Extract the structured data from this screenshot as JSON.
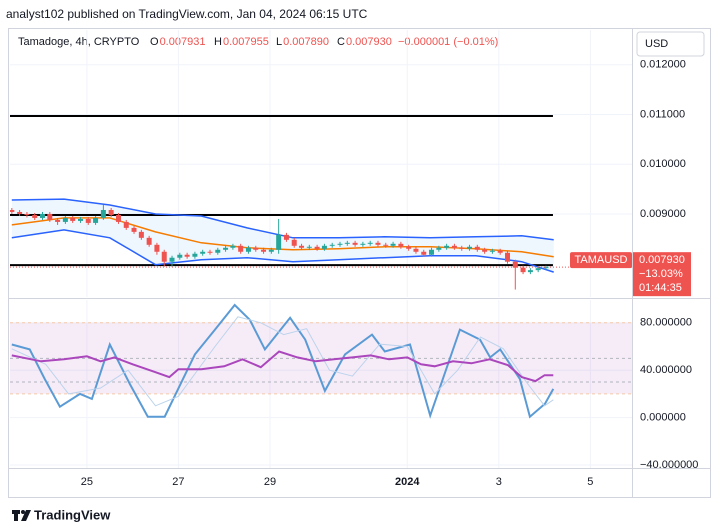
{
  "header": {
    "attribution": "analyst102 published on TradingView.com, Jan 04, 2024 06:15 UTC",
    "symbol": "Tamadoge, 4h, CRYPTO",
    "ohlc": [
      {
        "label": "O",
        "value": "0.007931"
      },
      {
        "label": "H",
        "value": "0.007955"
      },
      {
        "label": "L",
        "value": "0.007890"
      },
      {
        "label": "C",
        "value": "0.007930"
      }
    ],
    "change": "−0.000001 (−0.01%)",
    "currency": "USD",
    "footer": "TradingView"
  },
  "chart_data": [
    {
      "type": "candlestick",
      "up_color": "#26a69a",
      "down_color": "#ef5350",
      "x": [
        -1.64,
        -1.47,
        -1.31,
        -1.14,
        -0.97,
        -0.81,
        -0.64,
        -0.47,
        -0.31,
        -0.14,
        0.03,
        0.19,
        0.36,
        0.53,
        0.69,
        0.86,
        1.03,
        1.19,
        1.36,
        1.53,
        1.69,
        1.86,
        2.03,
        2.19,
        2.36,
        2.53,
        2.69,
        2.86,
        3.03,
        3.19,
        3.36,
        3.53,
        3.69,
        3.86,
        4.03,
        4.19,
        4.36,
        4.53,
        4.69,
        4.86,
        5.03,
        5.19,
        5.36,
        5.53,
        5.69,
        5.86,
        6.03,
        6.19,
        6.36,
        6.53,
        6.69,
        6.86,
        7.03,
        7.19,
        7.36,
        7.53,
        7.69,
        7.86,
        8.03,
        8.19,
        8.36,
        8.53,
        8.69,
        8.86,
        9.03,
        9.19,
        9.36,
        9.53,
        9.69,
        9.86,
        10.03
      ],
      "open": [
        0.00908,
        0.00904,
        0.009,
        0.00898,
        0.00892,
        0.009,
        0.00888,
        0.00884,
        0.00892,
        0.00886,
        0.0089,
        0.00882,
        0.00892,
        0.00908,
        0.00898,
        0.00884,
        0.00872,
        0.00864,
        0.00852,
        0.00838,
        0.00824,
        0.00804,
        0.00812,
        0.00818,
        0.00814,
        0.0082,
        0.00824,
        0.00822,
        0.00828,
        0.00832,
        0.00836,
        0.00824,
        0.00832,
        0.00828,
        0.00824,
        0.00828,
        0.00858,
        0.00848,
        0.00836,
        0.00832,
        0.00834,
        0.0083,
        0.00836,
        0.00838,
        0.0084,
        0.00842,
        0.00838,
        0.0084,
        0.00842,
        0.00838,
        0.00836,
        0.0084,
        0.00834,
        0.0083,
        0.00824,
        0.00818,
        0.00828,
        0.00832,
        0.00836,
        0.00832,
        0.0083,
        0.00834,
        0.00828,
        0.00824,
        0.00826,
        0.00822,
        0.00804,
        0.00792,
        0.00783,
        0.00787,
        0.00791
      ],
      "high": [
        0.00912,
        0.00908,
        0.00904,
        0.00902,
        0.00904,
        0.00904,
        0.00892,
        0.00896,
        0.00896,
        0.00894,
        0.00894,
        0.00896,
        0.00918,
        0.00912,
        0.00902,
        0.00888,
        0.00876,
        0.00868,
        0.00856,
        0.00842,
        0.00828,
        0.00816,
        0.00822,
        0.00822,
        0.00824,
        0.00828,
        0.00828,
        0.00832,
        0.00836,
        0.0084,
        0.0084,
        0.00836,
        0.00836,
        0.00832,
        0.00832,
        0.0089,
        0.00862,
        0.00852,
        0.0084,
        0.00838,
        0.00838,
        0.0084,
        0.00842,
        0.00844,
        0.00846,
        0.00846,
        0.00844,
        0.00846,
        0.00846,
        0.00842,
        0.00844,
        0.00844,
        0.00838,
        0.00834,
        0.00828,
        0.00832,
        0.00836,
        0.0084,
        0.0084,
        0.00836,
        0.00838,
        0.00838,
        0.00832,
        0.0083,
        0.0083,
        0.00826,
        0.00808,
        0.00796,
        0.00791,
        0.00795,
        0.00796
      ],
      "low": [
        0.009,
        0.00896,
        0.00893,
        0.00888,
        0.00888,
        0.00884,
        0.00878,
        0.0088,
        0.00882,
        0.00882,
        0.00878,
        0.00878,
        0.00888,
        0.00894,
        0.0088,
        0.00868,
        0.0086,
        0.00848,
        0.00834,
        0.00818,
        0.00794,
        0.00794,
        0.00808,
        0.0081,
        0.0081,
        0.00816,
        0.00818,
        0.00818,
        0.00824,
        0.00828,
        0.0082,
        0.0082,
        0.00824,
        0.0082,
        0.0082,
        0.0082,
        0.00844,
        0.00832,
        0.00828,
        0.00828,
        0.00826,
        0.00826,
        0.00832,
        0.00834,
        0.00836,
        0.00834,
        0.00834,
        0.00836,
        0.00834,
        0.00832,
        0.00832,
        0.0083,
        0.00826,
        0.0082,
        0.00814,
        0.00814,
        0.00824,
        0.00828,
        0.00828,
        0.00826,
        0.00826,
        0.00824,
        0.0082,
        0.0082,
        0.00818,
        0.008,
        0.00748,
        0.00779,
        0.00779,
        0.00783,
        0.00788
      ],
      "close": [
        0.00904,
        0.009,
        0.00898,
        0.00892,
        0.009,
        0.00888,
        0.00884,
        0.00892,
        0.00886,
        0.0089,
        0.00882,
        0.00892,
        0.00908,
        0.00898,
        0.00884,
        0.00872,
        0.00864,
        0.00852,
        0.00838,
        0.00824,
        0.00804,
        0.00812,
        0.00818,
        0.00814,
        0.0082,
        0.00824,
        0.00822,
        0.00828,
        0.00832,
        0.00836,
        0.00824,
        0.00832,
        0.00828,
        0.00824,
        0.00828,
        0.00858,
        0.00848,
        0.00836,
        0.00832,
        0.00834,
        0.0083,
        0.00836,
        0.00838,
        0.0084,
        0.00842,
        0.00838,
        0.0084,
        0.00842,
        0.00838,
        0.00836,
        0.0084,
        0.00834,
        0.0083,
        0.00824,
        0.00818,
        0.00828,
        0.00832,
        0.00836,
        0.00832,
        0.0083,
        0.00834,
        0.00828,
        0.00824,
        0.00826,
        0.00822,
        0.00804,
        0.00792,
        0.00783,
        0.00787,
        0.00791,
        0.00793
      ],
      "series": [
        {
          "color": "#2962ff",
          "x": [
            -1.64,
            -0.5,
            0.5,
            1.5,
            2.5,
            3.5,
            4.5,
            5.5,
            6.5,
            7.5,
            8.5,
            9.5,
            10.2
          ],
          "values": [
            0.00928,
            0.0093,
            0.00918,
            0.009,
            0.00896,
            0.00872,
            0.00852,
            0.00852,
            0.00854,
            0.00852,
            0.00854,
            0.00856,
            0.00848
          ]
        },
        {
          "color": "#f57c00",
          "x": [
            -1.64,
            -0.5,
            0.5,
            1.5,
            2.5,
            3.5,
            4.5,
            5.5,
            6.5,
            7.5,
            8.5,
            9.5,
            10.2
          ],
          "values": [
            0.00878,
            0.00892,
            0.00892,
            0.00864,
            0.00842,
            0.00832,
            0.00828,
            0.0083,
            0.00834,
            0.00834,
            0.0083,
            0.00824,
            0.00814
          ]
        },
        {
          "color": "#2962ff",
          "x": [
            -1.64,
            -0.5,
            0.5,
            1.5,
            2.5,
            3.5,
            4.5,
            5.5,
            6.5,
            7.5,
            8.5,
            9.5,
            10.2
          ],
          "values": [
            0.00852,
            0.00868,
            0.00852,
            0.00798,
            0.00808,
            0.00812,
            0.00804,
            0.00808,
            0.00812,
            0.00816,
            0.00816,
            0.00804,
            0.00783
          ]
        }
      ],
      "hlines": [
        0.01097,
        0.00898,
        0.00797
      ],
      "last_label": {
        "symbol": "TAMAUSD",
        "price": "0.007930",
        "change": "−13.03%",
        "countdown": "01:44:35"
      },
      "ylim": [
        0.00733,
        0.0127
      ],
      "yticks": [
        {
          "value": 0.012,
          "label": "0.012000"
        },
        {
          "value": 0.011,
          "label": "0.011000"
        },
        {
          "value": 0.01,
          "label": "0.010000"
        },
        {
          "value": 0.009,
          "label": "0.009000"
        }
      ],
      "xlim": [
        -1.68,
        11.91
      ],
      "xticks": [
        {
          "value": 0,
          "label": "25"
        },
        {
          "value": 2,
          "label": "27"
        },
        {
          "value": 4,
          "label": "29"
        },
        {
          "value": 7,
          "label": "2024"
        },
        {
          "value": 9,
          "label": "3"
        },
        {
          "value": 11,
          "label": "5"
        }
      ],
      "grid": true
    },
    {
      "type": "line",
      "series": [
        {
          "color": "#5b9bd5",
          "x": [
            -1.64,
            -1.25,
            -0.92,
            -0.59,
            -0.15,
            0.11,
            0.5,
            0.94,
            1.33,
            1.7,
            2.36,
            2.8,
            3.23,
            3.56,
            3.89,
            4.44,
            4.77,
            5.2,
            5.64,
            6.23,
            6.51,
            7.06,
            7.5,
            8.15,
            8.59,
            8.81,
            9.03,
            9.46,
            9.68,
            10.01,
            10.19
          ],
          "values": [
            61.7,
            57.5,
            32.5,
            9.2,
            20.0,
            15.8,
            61.7,
            28.3,
            0.8,
            0.8,
            53.3,
            74.2,
            95.0,
            82.5,
            57.5,
            84.2,
            65.8,
            22.5,
            53.3,
            70.0,
            55.8,
            61.7,
            1.7,
            74.2,
            65.8,
            50.8,
            57.5,
            32.5,
            0.8,
            11.7,
            24.2
          ]
        },
        {
          "color": "#bcd3ec",
          "x": [
            -1.64,
            -0.9,
            -0.4,
            0.3,
            0.9,
            1.5,
            2.0,
            2.8,
            3.3,
            3.8,
            4.3,
            4.8,
            5.3,
            5.8,
            6.4,
            7.0,
            7.6,
            8.1,
            8.6,
            9.1,
            9.6,
            10.0,
            10.19
          ],
          "values": [
            58,
            45,
            20,
            25,
            40,
            10,
            18,
            60,
            85,
            80,
            70,
            75,
            40,
            35,
            62,
            60,
            20,
            40,
            68,
            58,
            30,
            10,
            15
          ]
        },
        {
          "color": "#ab47bc",
          "x": [
            -1.64,
            -1.0,
            -0.5,
            0.0,
            0.3,
            0.6,
            1.0,
            1.5,
            1.8,
            2.0,
            2.5,
            3.0,
            3.4,
            3.8,
            4.2,
            4.6,
            5.0,
            5.4,
            5.8,
            6.2,
            6.6,
            7.0,
            7.3,
            7.6,
            8.0,
            8.4,
            8.8,
            9.2,
            9.5,
            9.8,
            10.0,
            10.19
          ],
          "values": [
            52.5,
            47.5,
            49.2,
            51.7,
            47.5,
            50.8,
            45.0,
            38.3,
            34.2,
            40.8,
            40.8,
            43.3,
            49.2,
            42.5,
            55.8,
            50.8,
            47.5,
            49.2,
            50.8,
            52.5,
            49.2,
            50.8,
            45.0,
            43.3,
            47.5,
            45.8,
            49.2,
            44.2,
            34.2,
            30.8,
            35.8,
            35.8
          ]
        }
      ],
      "band": [
        80,
        20
      ],
      "levels": [
        80,
        50,
        30,
        20
      ],
      "ylim": [
        -42.5,
        99.2
      ],
      "yticks": [
        {
          "value": 80,
          "label": "80.000000"
        },
        {
          "value": 40,
          "label": "40.000000"
        },
        {
          "value": 0,
          "label": "0.000000"
        },
        {
          "value": -40,
          "label": "−40.000000"
        }
      ],
      "grid": true
    }
  ]
}
